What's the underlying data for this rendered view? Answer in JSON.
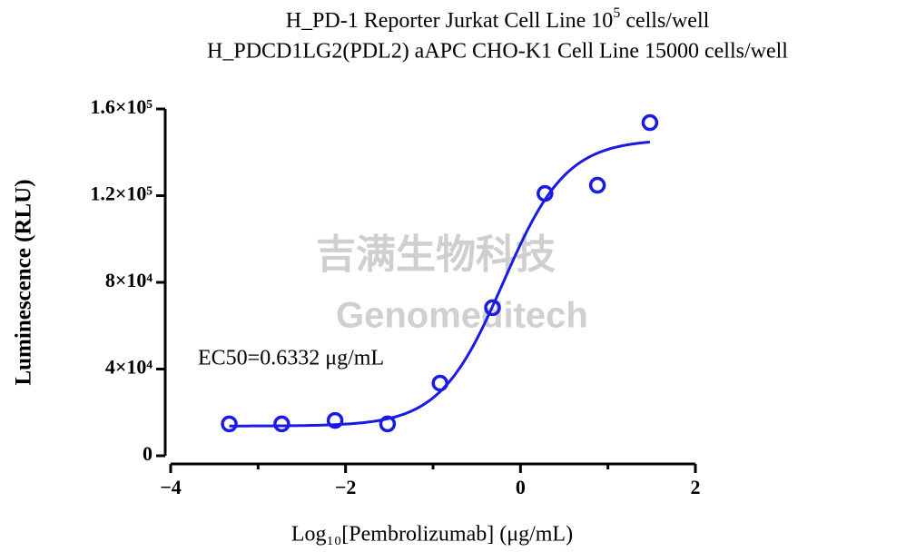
{
  "chart_data": {
    "type": "dose-response",
    "title_line1": [
      "H_PD-1 Reporter Jurkat Cell Line 10",
      "5",
      " cells/well"
    ],
    "title_line2": "H_PDCD1LG2(PDL2) aAPC CHO-K1 Cell Line 15000 cells/well",
    "x_label": "Log₁₀[Pembrolizumab] (μg/mL)",
    "y_label": "Luminescence (RLU)",
    "annotation": "EC50=0.6332 μg/mL",
    "watermark": [
      "吉满生物科技",
      "Genomeditech"
    ],
    "color": "#1a1ae6",
    "x": [
      -3.33,
      -2.73,
      -2.12,
      -1.52,
      -0.92,
      -0.32,
      0.28,
      0.88,
      1.48
    ],
    "values": [
      14700,
      14700,
      16300,
      14700,
      33500,
      68300,
      121000,
      124800,
      153700
    ],
    "fit": {
      "bottom": 13700,
      "top": 146000,
      "ec50": 0.6332,
      "hill": 1.2
    },
    "xlim": [
      -4,
      2
    ],
    "ylim": [
      0,
      160000
    ],
    "xticks": [
      {
        "value": -4,
        "label": "−4"
      },
      {
        "value": -2,
        "label": "−2"
      },
      0,
      2
    ],
    "xminorticks": [
      -3,
      -1,
      1
    ],
    "yticks": [
      0,
      {
        "value": 40000,
        "label": "4×10⁴"
      },
      {
        "value": 80000,
        "label": "8×10⁴"
      },
      {
        "value": 120000,
        "label": "1.2×10⁵"
      },
      {
        "value": 160000,
        "label": "1.6×10⁵"
      }
    ]
  }
}
